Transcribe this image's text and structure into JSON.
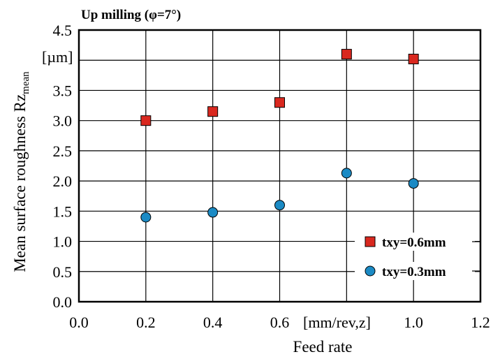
{
  "chart_data": {
    "type": "scatter",
    "title": "Up milling (φ=7°)",
    "xlabel": "Feed rate",
    "x_unit": "[mm/rev,z]",
    "ylabel": "Mean surface roughness Rz",
    "ylabel_sub": "mean",
    "y_unit": "[µm]",
    "xlim": [
      0.0,
      1.2
    ],
    "ylim": [
      0.0,
      4.5
    ],
    "x_ticks": [
      "0.0",
      "0.2",
      "0.4",
      "0.6",
      "",
      "1.0",
      "1.2"
    ],
    "y_ticks": [
      "0.0",
      "0.5",
      "1.0",
      "1.5",
      "2.0",
      "2.5",
      "3.0",
      "3.5",
      "",
      "4.5"
    ],
    "grid": true,
    "legend_position": "bottom-right",
    "series": [
      {
        "name": "txy=0.6mm",
        "marker": "square",
        "color": "#d9281f",
        "x": [
          0.2,
          0.4,
          0.6,
          0.8,
          1.0
        ],
        "y": [
          3.0,
          3.15,
          3.3,
          4.1,
          4.02
        ]
      },
      {
        "name": "txy=0.3mm",
        "marker": "circle",
        "color": "#1b8ac4",
        "x": [
          0.2,
          0.4,
          0.6,
          0.8,
          1.0
        ],
        "y": [
          1.4,
          1.48,
          1.6,
          2.13,
          1.96
        ]
      }
    ]
  }
}
